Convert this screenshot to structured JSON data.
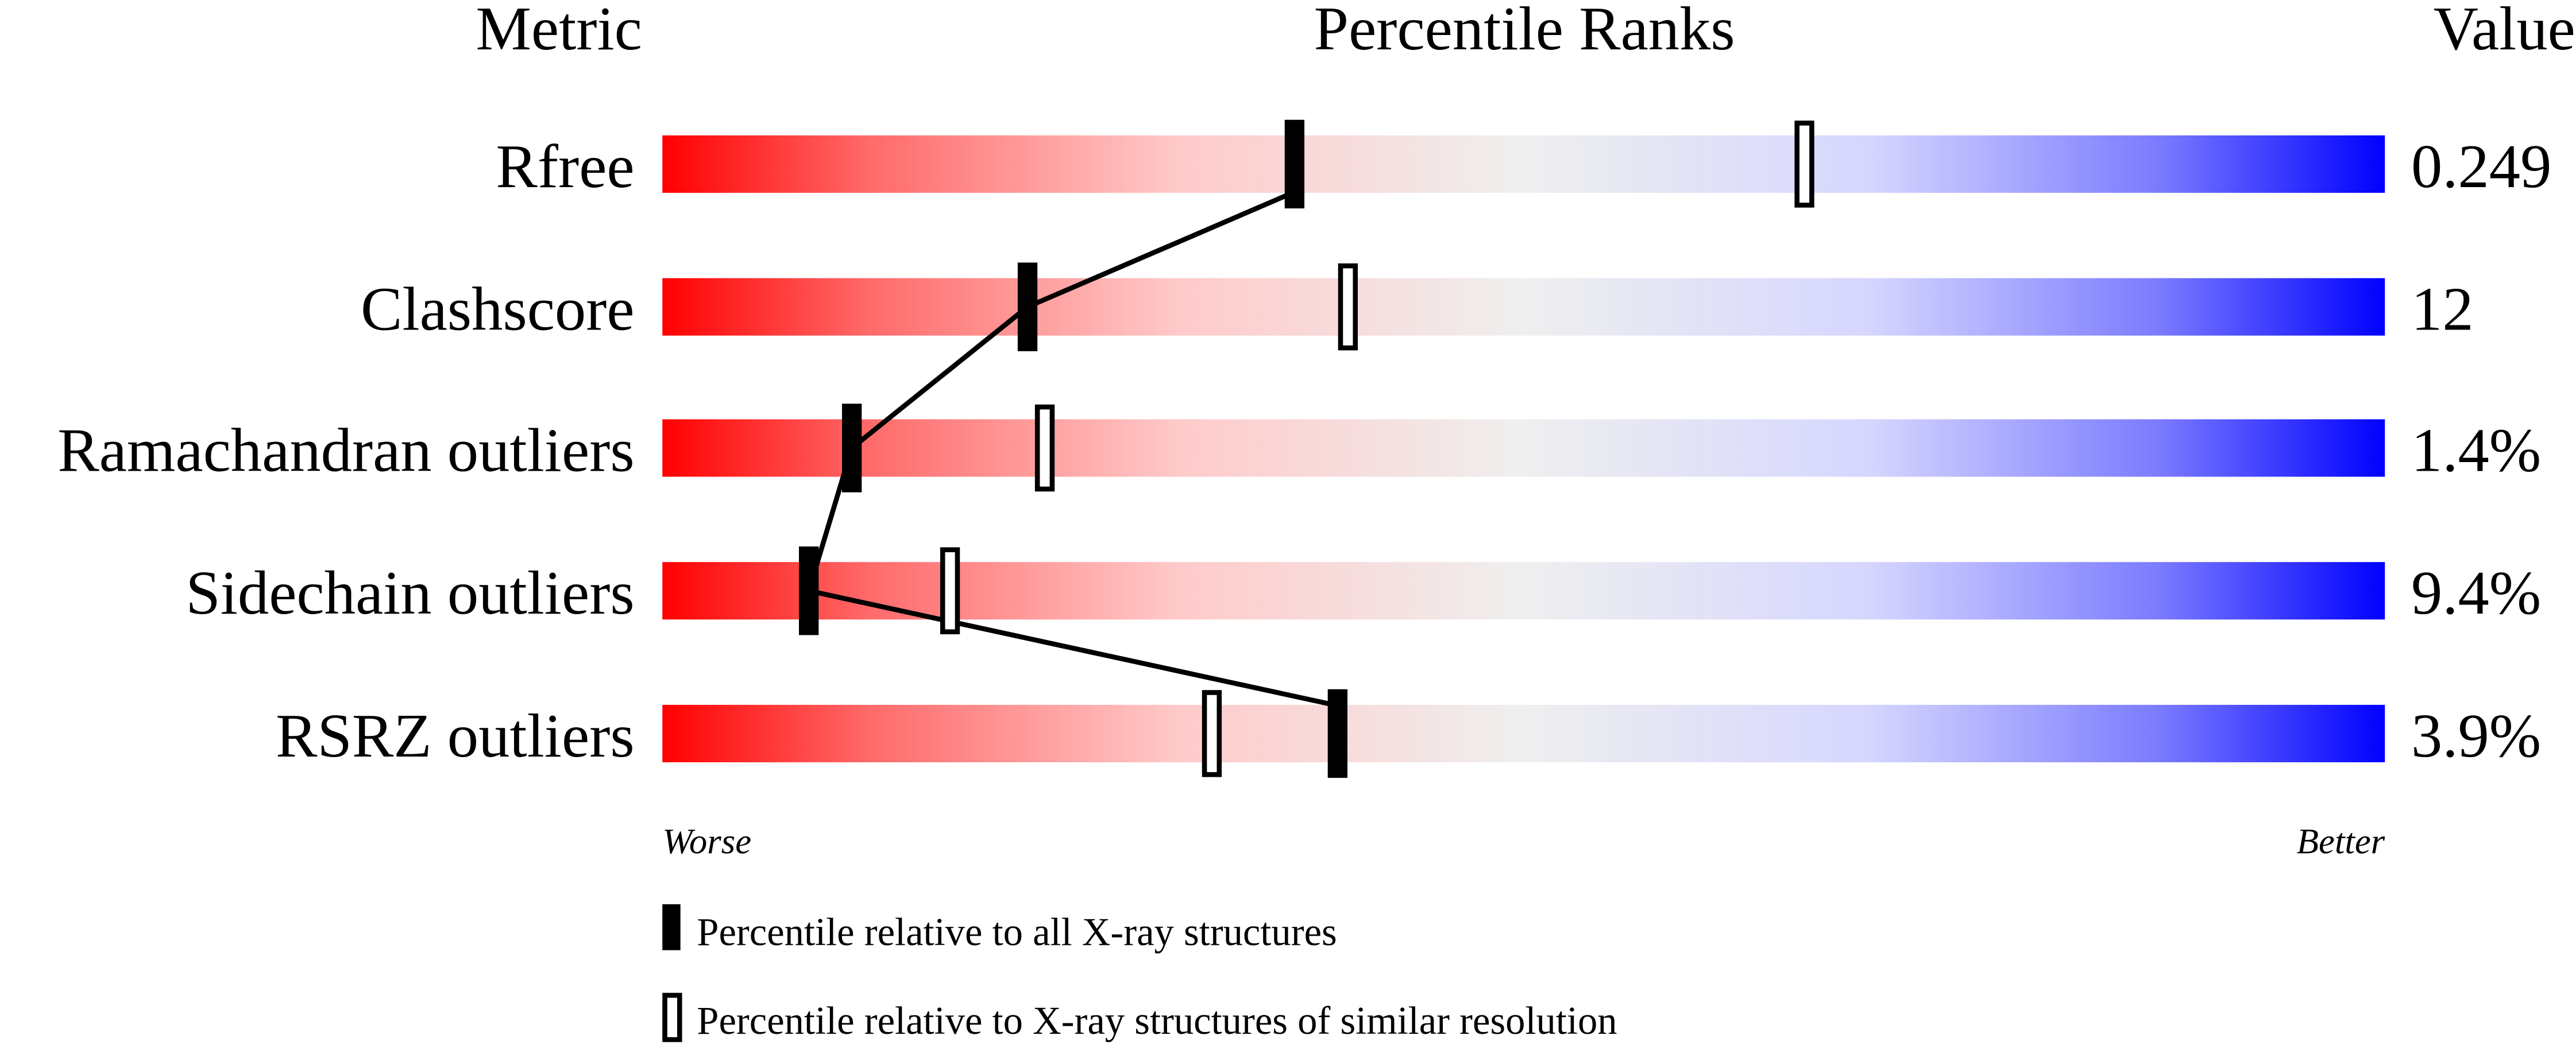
{
  "chart_data": {
    "type": "percentile-slider",
    "headers": {
      "metric": "Metric",
      "ranks": "Percentile Ranks",
      "value": "Value"
    },
    "xlim": [
      0,
      100
    ],
    "rows": [
      {
        "metric": "Rfree",
        "value": "0.249",
        "percentile_all": 36.7,
        "percentile_similar": 66.3
      },
      {
        "metric": "Clashscore",
        "value": "12",
        "percentile_all": 21.2,
        "percentile_similar": 39.8
      },
      {
        "metric": "Ramachandran outliers",
        "value": "1.4%",
        "percentile_all": 11.0,
        "percentile_similar": 22.2
      },
      {
        "metric": "Sidechain outliers",
        "value": "9.4%",
        "percentile_all": 8.5,
        "percentile_similar": 16.7
      },
      {
        "metric": "RSRZ outliers",
        "value": "3.9%",
        "percentile_all": 39.2,
        "percentile_similar": 31.9
      }
    ],
    "axis_labels": {
      "left": "Worse",
      "right": "Better"
    },
    "legend": [
      {
        "marker": "filled",
        "label": "Percentile relative to all X-ray structures"
      },
      {
        "marker": "open",
        "label": "Percentile relative to X-ray structures of similar resolution"
      }
    ],
    "colors": {
      "worse": "#ff0000",
      "middle": "#f0f0f0",
      "better": "#0000ff"
    }
  }
}
